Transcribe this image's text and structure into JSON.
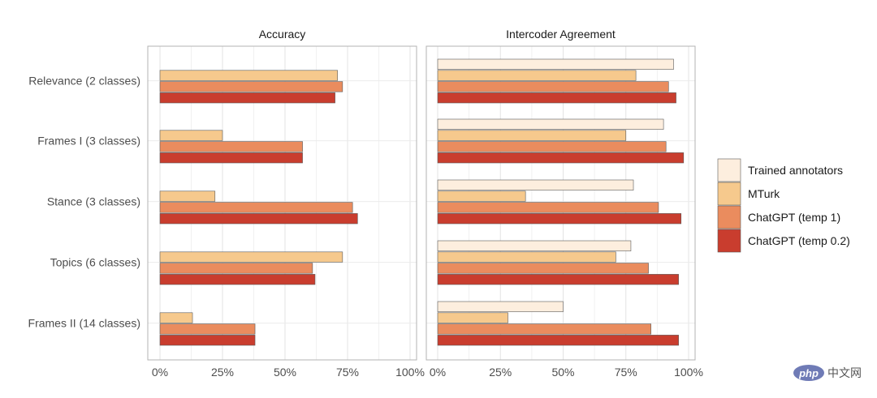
{
  "chart_data": {
    "type": "bar",
    "orientation": "horizontal",
    "categories": [
      "Relevance (2 classes)",
      "Frames I (3 classes)",
      "Stance (3 classes)",
      "Topics (6 classes)",
      "Frames II (14 classes)"
    ],
    "x_ticks": [
      "0%",
      "25%",
      "50%",
      "75%",
      "100%"
    ],
    "xlim": [
      0,
      100
    ],
    "grid": true,
    "legend_position": "right",
    "legend": [
      {
        "name": "Trained annotators",
        "color": "#fdeede"
      },
      {
        "name": "MTurk",
        "color": "#f6c98d"
      },
      {
        "name": "ChatGPT (temp 1)",
        "color": "#ea8c5e"
      },
      {
        "name": "ChatGPT (temp 0.2)",
        "color": "#c93d2e"
      }
    ],
    "panels": [
      {
        "title": "Accuracy",
        "series": [
          {
            "name": "MTurk",
            "values": [
              71,
              25,
              22,
              73,
              13
            ]
          },
          {
            "name": "ChatGPT (temp 1)",
            "values": [
              73,
              57,
              77,
              61,
              38
            ]
          },
          {
            "name": "ChatGPT (temp 0.2)",
            "values": [
              70,
              57,
              79,
              62,
              38
            ]
          }
        ]
      },
      {
        "title": "Intercoder Agreement",
        "series": [
          {
            "name": "Trained annotators",
            "values": [
              94,
              90,
              78,
              77,
              50
            ]
          },
          {
            "name": "MTurk",
            "values": [
              79,
              75,
              35,
              71,
              28
            ]
          },
          {
            "name": "ChatGPT (temp 1)",
            "values": [
              92,
              91,
              88,
              84,
              85
            ]
          },
          {
            "name": "ChatGPT (temp 0.2)",
            "values": [
              95,
              98,
              97,
              96,
              96
            ]
          }
        ]
      }
    ]
  },
  "watermark": {
    "logo": "php",
    "text": "中文网"
  }
}
